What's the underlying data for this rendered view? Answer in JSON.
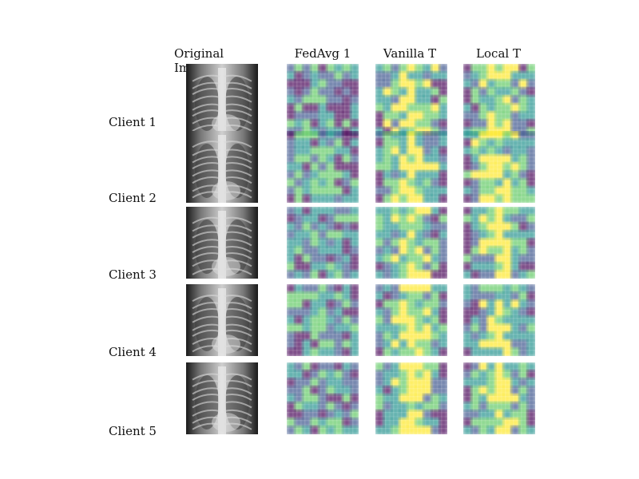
{
  "columns": [
    "Original Images",
    "FedAvg 1",
    "Vanilla T",
    "Local T"
  ],
  "rows": [
    "Client 1",
    "Client 2",
    "Client 3",
    "Client 4",
    "Client 5"
  ],
  "panel_types": [
    "xray",
    "heatmap",
    "heatmap",
    "heatmap"
  ],
  "colormap": "viridis",
  "colors": {
    "viridis": [
      "#440154",
      "#3b528b",
      "#21918c",
      "#5ec962",
      "#fde725"
    ],
    "xray_dark": "#111111",
    "xray_light": "#e6e6e6"
  }
}
